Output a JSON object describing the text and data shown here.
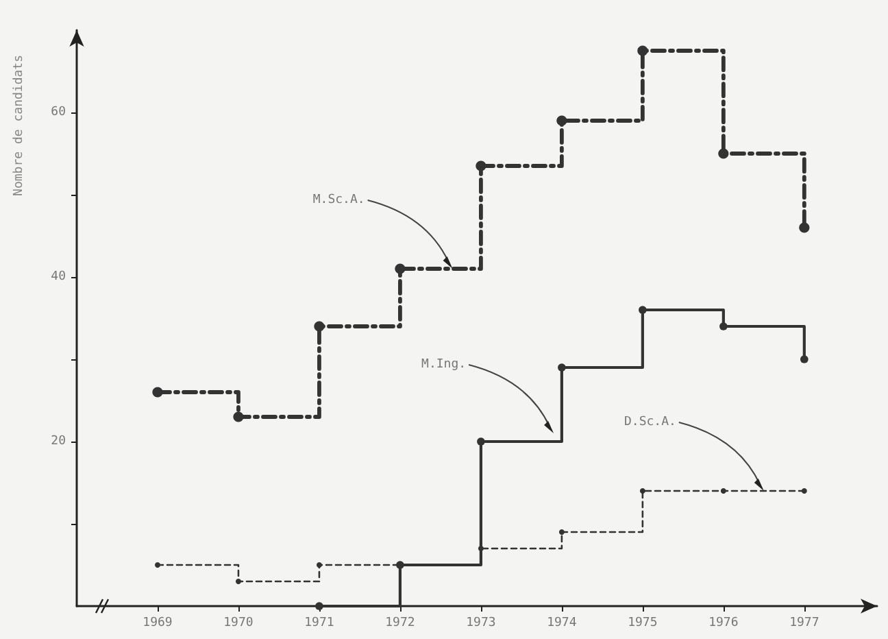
{
  "chart_data": {
    "type": "step",
    "ylabel": "Nombre de candidats",
    "x": [
      1969,
      1970,
      1971,
      1972,
      1973,
      1974,
      1975,
      1976,
      1977
    ],
    "series": [
      {
        "color": "#333333",
        "line_style": "dashed",
        "values": [
          26,
          23,
          34,
          41,
          53.5,
          59,
          67.5,
          55,
          46
        ]
      },
      {
        "color": "#333333",
        "line_style": "solid",
        "values": [
          null,
          null,
          0,
          5,
          20,
          29,
          36,
          34,
          30
        ]
      },
      {
        "color": "#333333",
        "line_style": "dotted",
        "values": [
          5,
          3,
          5,
          5,
          7,
          9,
          14,
          14,
          14
        ]
      }
    ],
    "annotations": [
      {
        "text": "M.Sc.A.",
        "x": 1972.65,
        "y": 41
      },
      {
        "text": "M.Ing.",
        "x": 1973.9,
        "y": 21
      },
      {
        "text": "D.Sc.A.",
        "x": 1976.5,
        "y": 14
      }
    ],
    "xlim": [
      1968,
      1977.9
    ],
    "xticks": [
      1969,
      1970,
      1971,
      1972,
      1973,
      1974,
      1975,
      1976,
      1977
    ],
    "ylim": [
      0,
      70
    ],
    "yticks": [
      {
        "value": 10,
        "label": null
      },
      20,
      {
        "value": 30,
        "label": null
      },
      40,
      {
        "value": 50,
        "label": null
      },
      60
    ],
    "marker": "circle",
    "grid": false
  }
}
